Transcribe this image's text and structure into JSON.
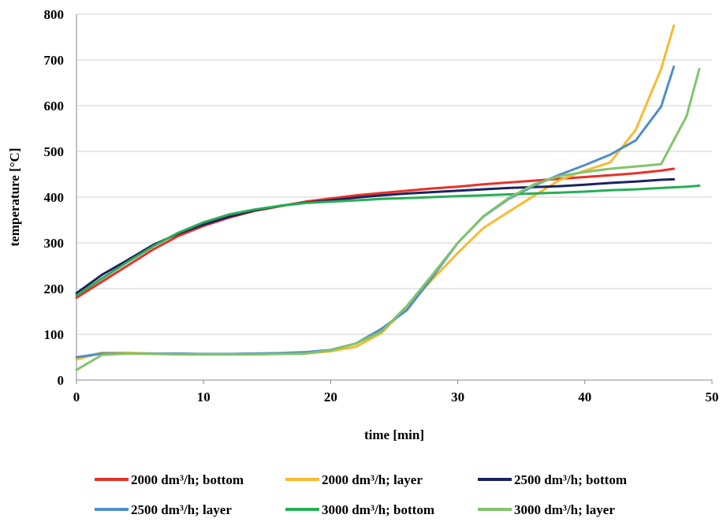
{
  "chart_data": {
    "type": "line",
    "title": "",
    "xlabel": "time [min]",
    "ylabel": "temperature [°C]",
    "xlim": [
      0,
      50
    ],
    "ylim": [
      0,
      800
    ],
    "xticks": [
      0,
      10,
      20,
      30,
      40,
      50
    ],
    "yticks": [
      0,
      100,
      200,
      300,
      400,
      500,
      600,
      700,
      800
    ],
    "grid": "horizontal",
    "legend_position": "bottom",
    "series": [
      {
        "name": "2000 dm³/h; bottom",
        "color": "#e8312a",
        "x": [
          0,
          2,
          4,
          6,
          8,
          10,
          12,
          14,
          16,
          18,
          20,
          22,
          24,
          26,
          28,
          30,
          32,
          34,
          36,
          38,
          40,
          42,
          44,
          46,
          47
        ],
        "y": [
          180,
          215,
          250,
          285,
          315,
          337,
          355,
          370,
          380,
          390,
          397,
          404,
          409,
          414,
          419,
          423,
          428,
          432,
          436,
          440,
          444,
          448,
          452,
          458,
          462
        ]
      },
      {
        "name": "2000 dm³/h; layer",
        "color": "#f7bb2f",
        "x": [
          0,
          2,
          4,
          6,
          8,
          10,
          12,
          14,
          16,
          18,
          20,
          22,
          24,
          26,
          28,
          30,
          32,
          34,
          36,
          38,
          40,
          42,
          44,
          46,
          47
        ],
        "y": [
          45,
          60,
          60,
          58,
          57,
          56,
          56,
          56,
          57,
          58,
          63,
          73,
          103,
          160,
          220,
          278,
          332,
          368,
          403,
          437,
          458,
          476,
          547,
          680,
          775
        ]
      },
      {
        "name": "2500 dm³/h; bottom",
        "color": "#1c2360",
        "x": [
          0,
          2,
          4,
          6,
          8,
          10,
          12,
          14,
          16,
          18,
          20,
          22,
          24,
          26,
          28,
          30,
          32,
          34,
          36,
          38,
          40,
          42,
          44,
          46,
          47
        ],
        "y": [
          190,
          230,
          262,
          295,
          320,
          340,
          357,
          371,
          381,
          388,
          393,
          399,
          404,
          408,
          411,
          414,
          417,
          420,
          422,
          424,
          427,
          431,
          434,
          438,
          439
        ]
      },
      {
        "name": "2500 dm³/h; layer",
        "color": "#4f8ec9",
        "x": [
          0,
          2,
          4,
          6,
          8,
          10,
          12,
          14,
          16,
          18,
          20,
          22,
          24,
          26,
          28,
          30,
          32,
          34,
          36,
          38,
          40,
          42,
          44,
          46,
          47
        ],
        "y": [
          50,
          58,
          58,
          58,
          58,
          57,
          57,
          58,
          59,
          61,
          66,
          80,
          112,
          153,
          225,
          300,
          357,
          396,
          425,
          449,
          470,
          493,
          524,
          598,
          685
        ]
      },
      {
        "name": "3000 dm³/h; bottom",
        "color": "#27ae57",
        "x": [
          0,
          2,
          4,
          6,
          8,
          10,
          12,
          14,
          16,
          18,
          20,
          22,
          24,
          26,
          28,
          30,
          32,
          34,
          36,
          38,
          40,
          42,
          44,
          46,
          48,
          49
        ],
        "y": [
          185,
          222,
          258,
          292,
          322,
          345,
          362,
          373,
          381,
          387,
          390,
          393,
          396,
          398,
          400,
          402,
          404,
          406,
          408,
          410,
          412,
          415,
          417,
          420,
          423,
          425
        ]
      },
      {
        "name": "3000 dm³/h; layer",
        "color": "#82c46c",
        "x": [
          0,
          2,
          4,
          6,
          8,
          10,
          12,
          14,
          16,
          18,
          20,
          22,
          24,
          26,
          28,
          30,
          32,
          34,
          36,
          38,
          40,
          42,
          44,
          46,
          48,
          49
        ],
        "y": [
          22,
          55,
          58,
          57,
          56,
          56,
          56,
          56,
          57,
          58,
          65,
          80,
          106,
          162,
          230,
          300,
          358,
          398,
          428,
          446,
          455,
          462,
          467,
          472,
          577,
          680
        ]
      }
    ]
  }
}
